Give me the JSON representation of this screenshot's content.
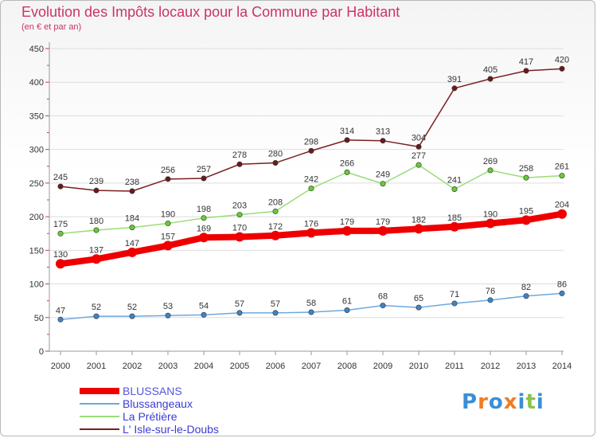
{
  "title": "Evolution des Impôts locaux pour la Commune par Habitant",
  "subtitle": "(en € et par an)",
  "logo": {
    "letters": [
      "P",
      "r",
      "o",
      "x",
      "i",
      "t",
      "i"
    ],
    "colors": [
      "#3a8fd6",
      "#ef7d22",
      "#3a8fd6",
      "#ef7d22",
      "#3a8fd6",
      "#8bc34a",
      "#3a8fd6"
    ]
  },
  "chart_data": {
    "type": "line",
    "title": "Evolution des Impôts locaux pour la Commune par Habitant",
    "subtitle": "(en € et par an)",
    "xlabel": "",
    "ylabel": "",
    "ylim": [
      0,
      450
    ],
    "yticks": [
      0,
      50,
      100,
      150,
      200,
      250,
      300,
      350,
      400,
      450
    ],
    "categories": [
      "2000",
      "2001",
      "2002",
      "2003",
      "2004",
      "2005",
      "2006",
      "2007",
      "2008",
      "2009",
      "2010",
      "2011",
      "2012",
      "2013",
      "2014"
    ],
    "legend_position": "bottom-left",
    "series": [
      {
        "name": "L' Isle-sur-le-Doubs",
        "color": "#7b1f1f",
        "marker": "#6b1a1a",
        "values": [
          245,
          239,
          238,
          256,
          257,
          278,
          280,
          298,
          314,
          313,
          304,
          391,
          405,
          417,
          420
        ]
      },
      {
        "name": "La Prétière",
        "color": "#99dd77",
        "marker": "#66cc33",
        "values": [
          175,
          180,
          184,
          190,
          198,
          203,
          208,
          242,
          266,
          249,
          277,
          241,
          269,
          258,
          261
        ]
      },
      {
        "name": "Blussangeaux",
        "color": "#6fa8dc",
        "marker": "#3d85c6",
        "values": [
          47,
          52,
          52,
          53,
          54,
          57,
          57,
          58,
          61,
          68,
          65,
          71,
          76,
          82,
          86
        ]
      },
      {
        "name": "BLUSSANS",
        "color": "#ee0000",
        "marker": "#ee0000",
        "values": [
          130,
          137,
          147,
          157,
          169,
          170,
          172,
          176,
          179,
          179,
          182,
          185,
          190,
          195,
          204
        ]
      }
    ]
  }
}
